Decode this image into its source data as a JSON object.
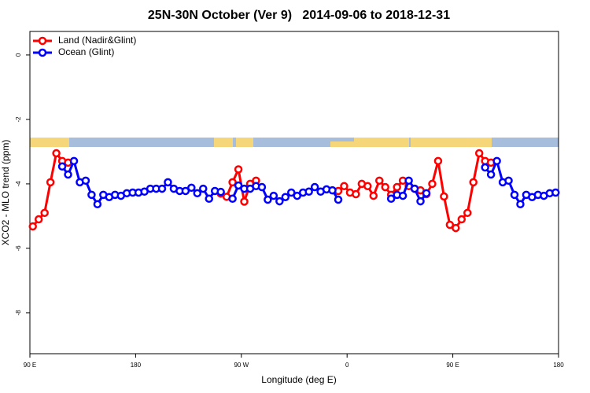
{
  "chart_data": {
    "type": "line",
    "title": "25N-30N October (Ver 9)   2014-09-06 to 2018-12-31",
    "xlabel": "Longitude (deg E)",
    "ylabel": "XCO2 - MLO trend (ppm)",
    "xlim": [
      90,
      540
    ],
    "ylim": [
      -9.27,
      0.73
    ],
    "xticks": [
      {
        "value": 90,
        "label": "90 E"
      },
      180,
      {
        "value": 270,
        "label": "90 W"
      },
      {
        "value": 360,
        "label": "0"
      },
      {
        "value": 450,
        "label": "90 E"
      },
      {
        "value": 540,
        "label": "180"
      }
    ],
    "yticks": [
      0,
      -2,
      -4,
      -6,
      -8
    ],
    "legend": "top-left",
    "x": [
      92.5,
      97.5,
      102.5,
      107.5,
      112.5,
      117.5,
      122.5,
      127.5,
      132.5,
      137.5,
      142.5,
      147.5,
      152.5,
      157.5,
      162.5,
      167.5,
      172.5,
      177.5,
      182.5,
      187.5,
      192.5,
      197.5,
      202.5,
      207.5,
      212.5,
      217.5,
      222.5,
      227.5,
      232.5,
      237.5,
      242.5,
      247.5,
      252.5,
      257.5,
      262.5,
      267.5,
      272.5,
      277.5,
      282.5,
      287.5,
      292.5,
      297.5,
      302.5,
      307.5,
      312.5,
      317.5,
      322.5,
      327.5,
      332.5,
      337.5,
      342.5,
      347.5,
      352.5,
      357.5,
      362.5,
      367.5,
      372.5,
      377.5,
      382.5,
      387.5,
      392.5,
      397.5,
      402.5,
      407.5,
      412.5,
      417.5,
      422.5,
      427.5,
      432.5,
      437.5,
      442.5,
      447.5,
      452.5,
      457.5,
      462.5,
      467.5,
      472.5,
      477.5,
      482.5,
      487.5,
      492.5,
      497.5,
      502.5,
      507.5,
      512.5,
      517.5,
      522.5,
      527.5,
      532.5,
      537.5
    ],
    "series": [
      {
        "name": "Land (Nadir&Glint)",
        "color": "#ff0000",
        "values": [
          -5.32,
          -5.1,
          -4.9,
          -3.95,
          -3.05,
          -3.29,
          -3.34,
          null,
          null,
          null,
          null,
          null,
          null,
          null,
          null,
          null,
          null,
          null,
          null,
          null,
          null,
          null,
          null,
          null,
          null,
          null,
          null,
          null,
          null,
          null,
          null,
          null,
          -4.3,
          -4.4,
          -3.95,
          -3.55,
          -4.55,
          -4.0,
          -3.9,
          null,
          null,
          null,
          null,
          null,
          null,
          null,
          null,
          null,
          null,
          null,
          null,
          null,
          -4.22,
          -4.07,
          -4.27,
          -4.32,
          -4.0,
          -4.07,
          -4.37,
          -3.9,
          -4.1,
          -4.34,
          -4.1,
          -3.9,
          -4.07,
          -4.15,
          -4.2,
          -4.32,
          -4.0,
          -3.29,
          -4.39,
          -5.27,
          -5.37,
          -5.1,
          -4.9,
          -3.95,
          -3.05,
          -3.29,
          -3.34,
          null,
          null,
          null,
          null,
          null,
          null,
          null,
          null,
          null,
          null,
          null
        ]
      },
      {
        "name": "Ocean (Glint)",
        "color": "#0000ff",
        "values": [
          null,
          null,
          null,
          null,
          null,
          -3.46,
          -3.71,
          -3.29,
          -3.95,
          -3.9,
          -4.34,
          -4.63,
          -4.34,
          -4.41,
          -4.34,
          -4.37,
          -4.29,
          -4.27,
          -4.27,
          -4.24,
          -4.15,
          -4.15,
          -4.15,
          -3.95,
          -4.15,
          -4.22,
          -4.22,
          -4.12,
          -4.29,
          -4.15,
          -4.46,
          -4.22,
          -4.25,
          null,
          -4.46,
          -4.05,
          -4.15,
          -4.15,
          -4.07,
          -4.1,
          -4.49,
          -4.37,
          -4.54,
          -4.41,
          -4.27,
          -4.37,
          -4.27,
          -4.24,
          -4.1,
          -4.24,
          -4.17,
          -4.2,
          -4.49,
          null,
          null,
          null,
          null,
          null,
          null,
          null,
          null,
          -4.46,
          -4.34,
          -4.37,
          -3.9,
          -4.15,
          -4.54,
          -4.29,
          null,
          null,
          null,
          null,
          null,
          null,
          null,
          null,
          null,
          -3.49,
          -3.71,
          -3.29,
          -3.95,
          -3.9,
          -4.34,
          -4.63,
          -4.34,
          -4.41,
          -4.34,
          -4.37,
          -4.29,
          -4.27
        ]
      }
    ]
  }
}
